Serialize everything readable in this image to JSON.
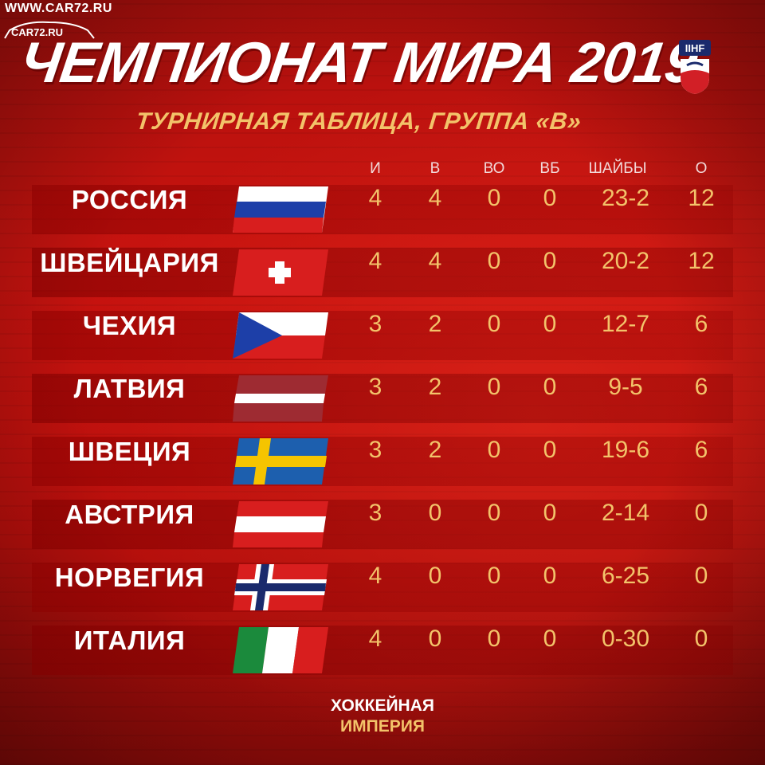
{
  "watermark": {
    "site_top": "WWW.CAR72.RU",
    "site_logo": "CAR72.RU"
  },
  "header": {
    "title": "ЧЕМПИОНАТ МИРА 2019",
    "subtitle": "ТУРНИРНАЯ ТАБЛИЦА, ГРУППА «B»",
    "logo_text": "IIHF"
  },
  "columns": {
    "games": "И",
    "wins": "В",
    "ot_wins": "ВО",
    "so_wins": "ВБ",
    "goals": "ШАЙБЫ",
    "points": "О"
  },
  "teams": [
    {
      "name": "РОССИЯ",
      "flag": "russia-flag",
      "games": "4",
      "wins": "4",
      "ot_wins": "0",
      "so_wins": "0",
      "goals": "23-2",
      "points": "12"
    },
    {
      "name": "ШВЕЙЦАРИЯ",
      "flag": "switzerland-flag",
      "games": "4",
      "wins": "4",
      "ot_wins": "0",
      "so_wins": "0",
      "goals": "20-2",
      "points": "12"
    },
    {
      "name": "ЧЕХИЯ",
      "flag": "czech-flag",
      "games": "3",
      "wins": "2",
      "ot_wins": "0",
      "so_wins": "0",
      "goals": "12-7",
      "points": "6"
    },
    {
      "name": "ЛАТВИЯ",
      "flag": "latvia-flag",
      "games": "3",
      "wins": "2",
      "ot_wins": "0",
      "so_wins": "0",
      "goals": "9-5",
      "points": "6"
    },
    {
      "name": "ШВЕЦИЯ",
      "flag": "sweden-flag",
      "games": "3",
      "wins": "2",
      "ot_wins": "0",
      "so_wins": "0",
      "goals": "19-6",
      "points": "6"
    },
    {
      "name": "АВСТРИЯ",
      "flag": "austria-flag",
      "games": "3",
      "wins": "0",
      "ot_wins": "0",
      "so_wins": "0",
      "goals": "2-14",
      "points": "0"
    },
    {
      "name": "НОРВЕГИЯ",
      "flag": "norway-flag",
      "games": "4",
      "wins": "0",
      "ot_wins": "0",
      "so_wins": "0",
      "goals": "6-25",
      "points": "0"
    },
    {
      "name": "ИТАЛИЯ",
      "flag": "italy-flag",
      "games": "4",
      "wins": "0",
      "ot_wins": "0",
      "so_wins": "0",
      "goals": "0-30",
      "points": "0"
    }
  ],
  "footer": {
    "line1": "ХОККЕЙНАЯ",
    "line2": "ИМПЕРИЯ"
  },
  "colors": {
    "background": "#c8130f",
    "accent_gold": "#f3c36a",
    "text_white": "#ffffff"
  }
}
